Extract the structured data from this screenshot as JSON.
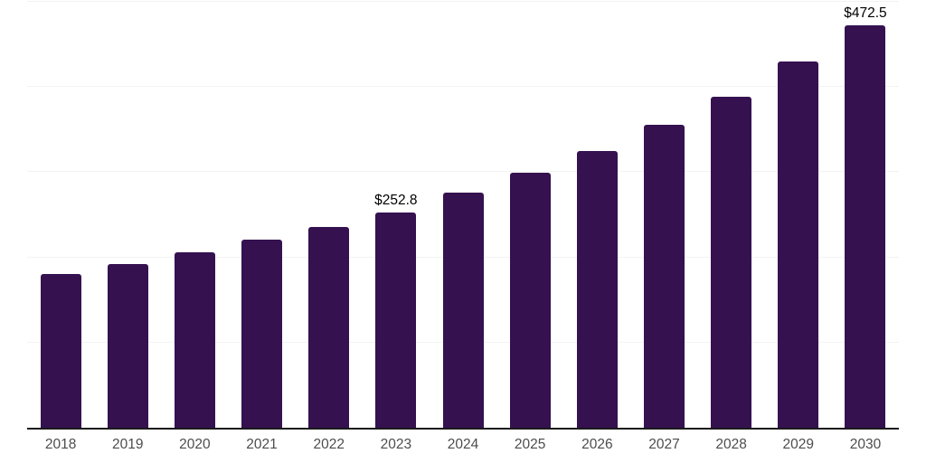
{
  "chart_data": {
    "type": "bar",
    "title": "",
    "xlabel": "",
    "ylabel": "",
    "categories": [
      "2018",
      "2019",
      "2020",
      "2021",
      "2022",
      "2023",
      "2024",
      "2025",
      "2026",
      "2027",
      "2028",
      "2029",
      "2030"
    ],
    "values": [
      180.5,
      192.0,
      205.5,
      220.5,
      235.5,
      252.8,
      275.5,
      299.0,
      324.5,
      355.5,
      389.0,
      429.5,
      472.5
    ],
    "value_labels": [
      "",
      "",
      "",
      "",
      "",
      "$252.8",
      "",
      "",
      "",
      "",
      "",
      "",
      "$472.5"
    ],
    "ylim": [
      0,
      500
    ],
    "y_gridline_step": 100,
    "grid": true,
    "legend": "none",
    "colors": {
      "bar": "#351150",
      "axis_line": "#1a1a1a",
      "gridline": "#f2f2f2",
      "tick_label": "#4d4d4d",
      "data_label": "#000000"
    }
  }
}
